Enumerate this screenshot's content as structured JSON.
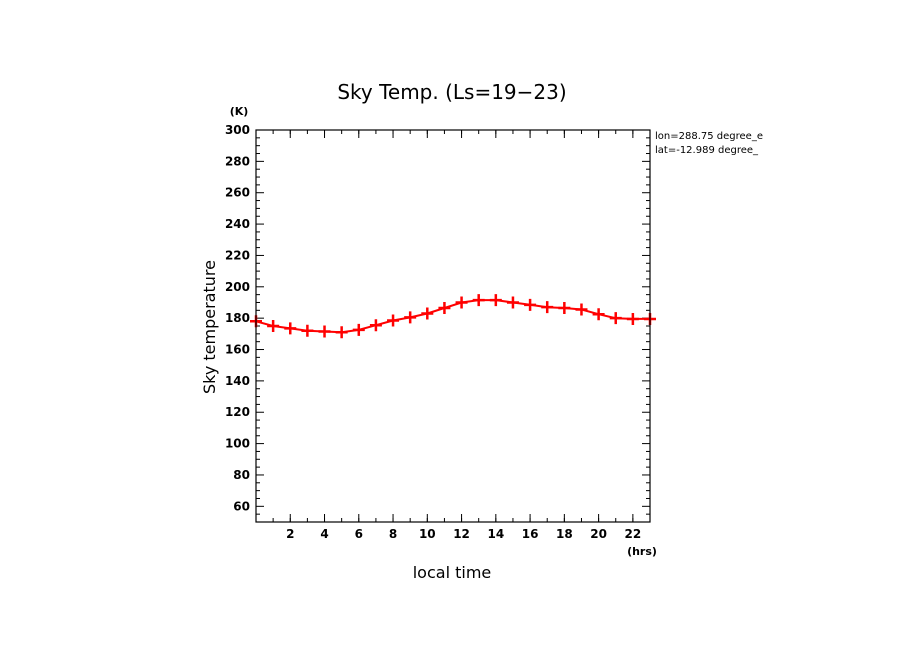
{
  "chart_data": {
    "type": "line",
    "title": "Sky Temp. (Ls=19−23)",
    "xlabel": "local time",
    "ylabel": "Sky temperature",
    "x_unit": "(hrs)",
    "y_unit": "(K)",
    "xlim": [
      0,
      23
    ],
    "ylim": [
      50,
      300
    ],
    "xticks": [
      2,
      4,
      6,
      8,
      10,
      12,
      14,
      16,
      18,
      20,
      22
    ],
    "yticks": [
      60,
      80,
      100,
      120,
      140,
      160,
      180,
      200,
      220,
      240,
      260,
      280,
      300
    ],
    "grid": false,
    "annotations": [
      "lon=288.75 degree_e",
      "lat=-12.989 degree_"
    ],
    "color": "#ff0000",
    "marker": "plus",
    "x": [
      0,
      1,
      2,
      3,
      4,
      5,
      6,
      7,
      8,
      9,
      10,
      11,
      12,
      13,
      14,
      15,
      16,
      17,
      18,
      19,
      20,
      21,
      22,
      23
    ],
    "y": [
      178,
      175,
      173.5,
      172,
      171.5,
      171,
      172.5,
      175.5,
      178.5,
      180.5,
      183,
      186.5,
      190,
      191.5,
      191.5,
      190,
      188.5,
      187,
      186.5,
      185.5,
      182.5,
      180,
      179.5,
      179.5
    ]
  }
}
